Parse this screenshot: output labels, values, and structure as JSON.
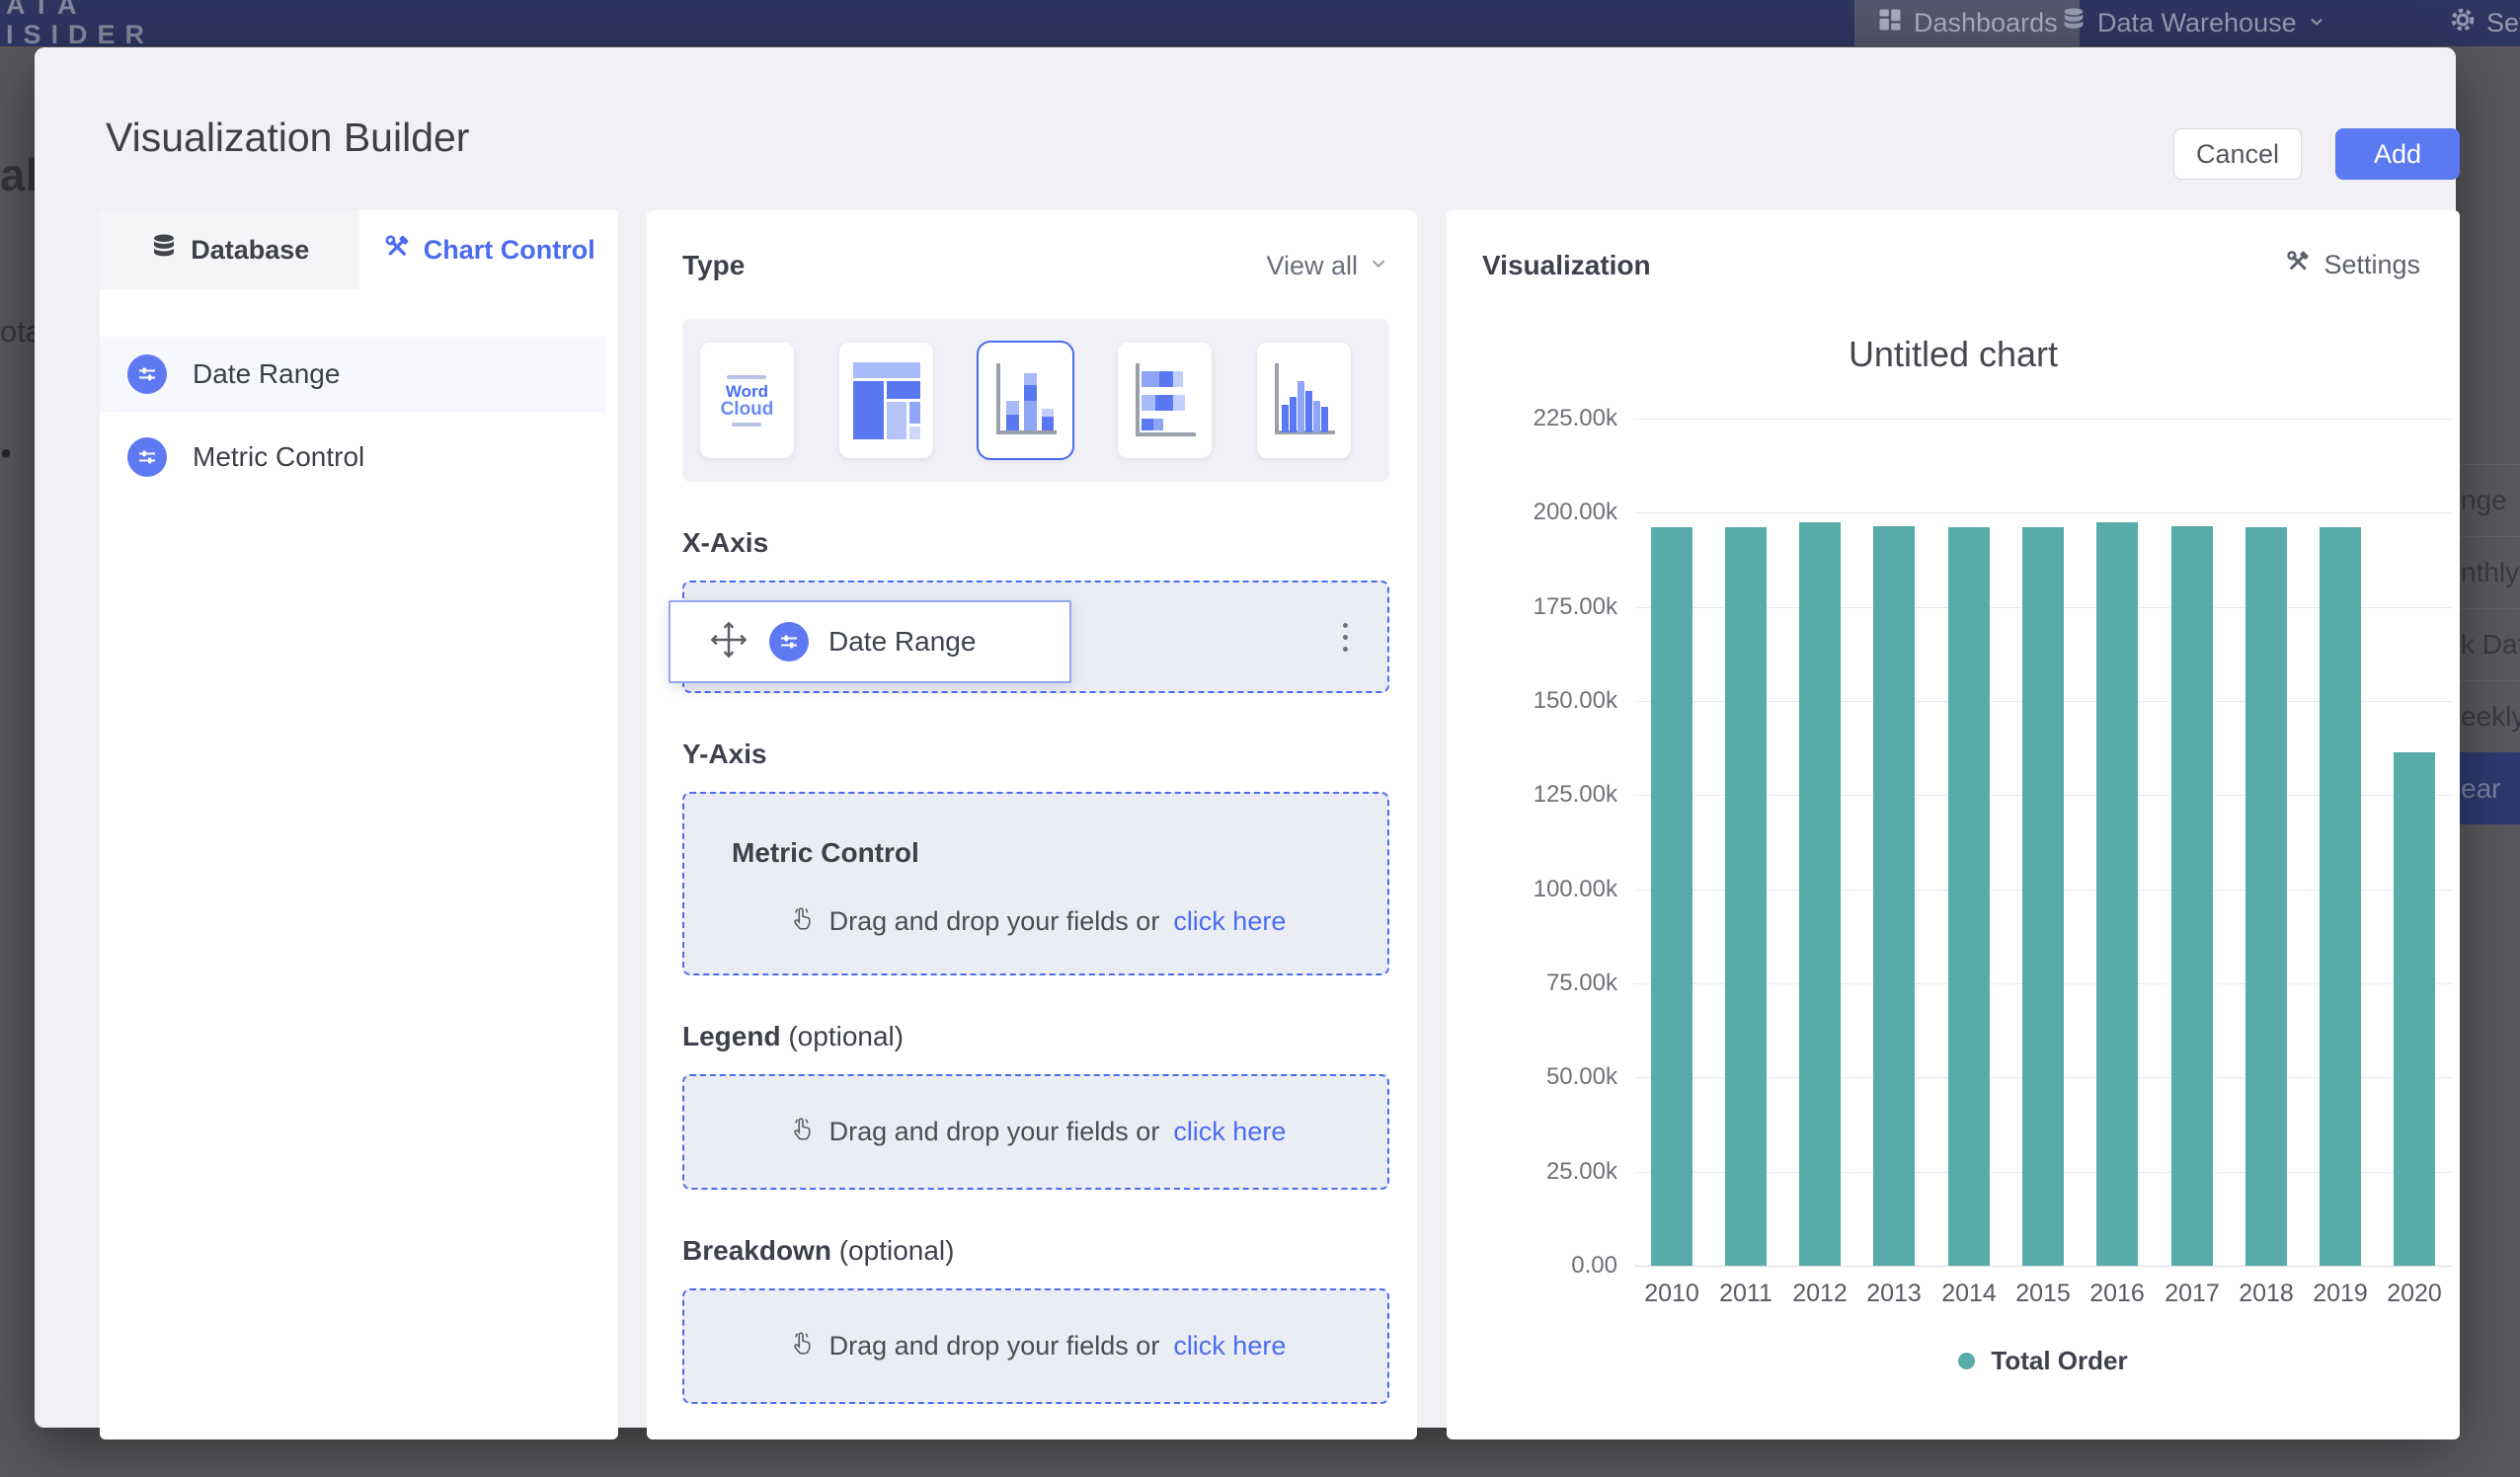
{
  "background": {
    "nav": {
      "logo_top": "ATA",
      "logo_bottom": "ISIDER",
      "dashboards": "Dashboards",
      "data_warehouse": "Data Warehouse",
      "settings_partial": "Setti"
    },
    "left_fragments": {
      "f1": "al",
      "f2": "ota",
      "bullet": "●"
    },
    "right_fragments": [
      "nge",
      "nthly",
      "k Date",
      "eekly",
      "ear"
    ],
    "right_selected_index": 4
  },
  "modal": {
    "title": "Visualization Builder",
    "cancel_label": "Cancel",
    "add_label": "Add"
  },
  "left_panel": {
    "tabs": [
      {
        "label": "Database"
      },
      {
        "label": "Chart Control"
      }
    ],
    "active_tab": "Chart Control",
    "fields": [
      {
        "label": "Date Range",
        "selected": true
      },
      {
        "label": "Metric Control",
        "selected": false
      }
    ]
  },
  "builder": {
    "type_label": "Type",
    "view_all_label": "View all",
    "chart_types": [
      "word-cloud",
      "treemap",
      "column-chart",
      "stacked-bar",
      "histogram"
    ],
    "selected_chart_type": "column-chart",
    "word_cloud_words": {
      "w1": "Word",
      "w2": "Cloud"
    },
    "x_axis": {
      "title": "X-Axis",
      "chip_label": "Date Range",
      "ghost_label": "Date Range"
    },
    "y_axis": {
      "title": "Y-Axis",
      "zone_title": "Metric Control",
      "drop_text": "Drag and drop your fields or",
      "link_label": "click here"
    },
    "legend": {
      "title": "Legend",
      "suffix": "(optional)",
      "drop_text": "Drag and drop your fields or",
      "link_label": "click here"
    },
    "breakdown": {
      "title": "Breakdown",
      "suffix": "(optional)",
      "drop_text": "Drag and drop your fields or",
      "link_label": "click here"
    }
  },
  "visualization": {
    "header": "Visualization",
    "settings_label": "Settings",
    "chart_title": "Untitled chart",
    "legend_label": "Total Order"
  },
  "chart_data": {
    "type": "bar",
    "title": "Untitled chart",
    "categories": [
      "2010",
      "2011",
      "2012",
      "2013",
      "2014",
      "2015",
      "2016",
      "2017",
      "2018",
      "2019",
      "2020"
    ],
    "series": [
      {
        "name": "Total Order",
        "values": [
          196200,
          196100,
          197400,
          196300,
          196200,
          196200,
          197500,
          196300,
          196100,
          196200,
          136400
        ]
      }
    ],
    "xlabel": "",
    "ylabel": "",
    "ylim": [
      0,
      225000
    ],
    "ytick_step": 25000,
    "ytick_labels": [
      "225.00k",
      "200.00k",
      "175.00k",
      "150.00k",
      "125.00k",
      "100.00k",
      "75.00k",
      "50.00k",
      "25.00k",
      "0.00"
    ],
    "bar_color": "#57acaa",
    "grid": true,
    "legend_position": "bottom"
  },
  "colors": {
    "accent_blue": "#4a6cf0",
    "add_button": "#5b7af2",
    "bar_teal": "#57acaa",
    "nav_navy": "#2d3561",
    "overlay_gray": "#59585c"
  }
}
